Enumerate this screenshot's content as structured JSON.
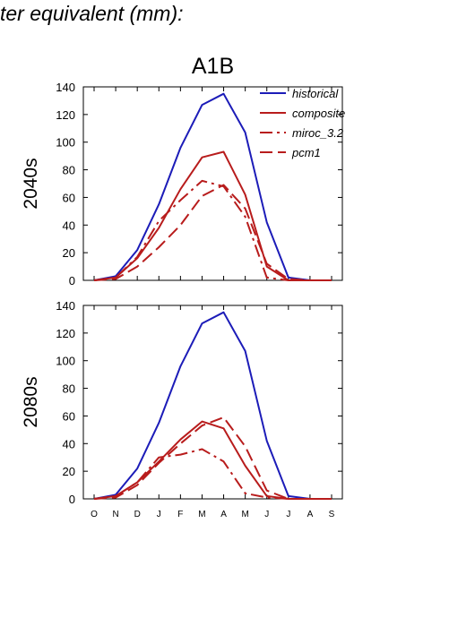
{
  "header_text": "ter equivalent (mm):",
  "chart_data": [
    {
      "type": "line",
      "title": "A1B",
      "ylabel": "2040s",
      "x": [
        "O",
        "N",
        "D",
        "J",
        "F",
        "M",
        "A",
        "M",
        "J",
        "J",
        "A",
        "S"
      ],
      "ylim": [
        0,
        140
      ],
      "yticks": [
        0,
        20,
        40,
        60,
        80,
        100,
        120,
        140
      ],
      "legend_position": "top-right",
      "series": [
        {
          "name": "historical",
          "color": "#1c1cb8",
          "style": "solid",
          "values": [
            0,
            3,
            22,
            55,
            96,
            127,
            135,
            107,
            42,
            2,
            0,
            0
          ]
        },
        {
          "name": "composite",
          "color": "#b81c1c",
          "style": "solid",
          "values": [
            0,
            2,
            16,
            38,
            66,
            89,
            93,
            62,
            10,
            0,
            0,
            0
          ]
        },
        {
          "name": "miroc_3.2",
          "color": "#b81c1c",
          "style": "dashdot",
          "values": [
            0,
            2,
            17,
            43,
            58,
            72,
            68,
            46,
            2,
            0,
            0,
            0
          ]
        },
        {
          "name": "pcm1",
          "color": "#b81c1c",
          "style": "dashed",
          "values": [
            0,
            1,
            10,
            24,
            40,
            61,
            69,
            52,
            12,
            1,
            0,
            0
          ]
        }
      ]
    },
    {
      "type": "line",
      "title": "",
      "ylabel": "2080s",
      "x": [
        "O",
        "N",
        "D",
        "J",
        "F",
        "M",
        "A",
        "M",
        "J",
        "J",
        "A",
        "S"
      ],
      "ylim": [
        0,
        140
      ],
      "yticks": [
        0,
        20,
        40,
        60,
        80,
        100,
        120,
        140
      ],
      "series": [
        {
          "name": "historical",
          "color": "#1c1cb8",
          "style": "solid",
          "values": [
            0,
            3,
            22,
            55,
            96,
            127,
            135,
            107,
            42,
            2,
            0,
            0
          ]
        },
        {
          "name": "composite",
          "color": "#b81c1c",
          "style": "solid",
          "values": [
            0,
            2,
            12,
            27,
            43,
            56,
            51,
            24,
            2,
            0,
            0,
            0
          ]
        },
        {
          "name": "miroc_3.2",
          "color": "#b81c1c",
          "style": "dashdot",
          "values": [
            0,
            2,
            12,
            30,
            32,
            36,
            27,
            4,
            1,
            0,
            0,
            0
          ]
        },
        {
          "name": "pcm1",
          "color": "#b81c1c",
          "style": "dashed",
          "values": [
            0,
            1,
            10,
            26,
            40,
            53,
            59,
            38,
            6,
            0,
            0,
            0
          ]
        }
      ]
    }
  ]
}
